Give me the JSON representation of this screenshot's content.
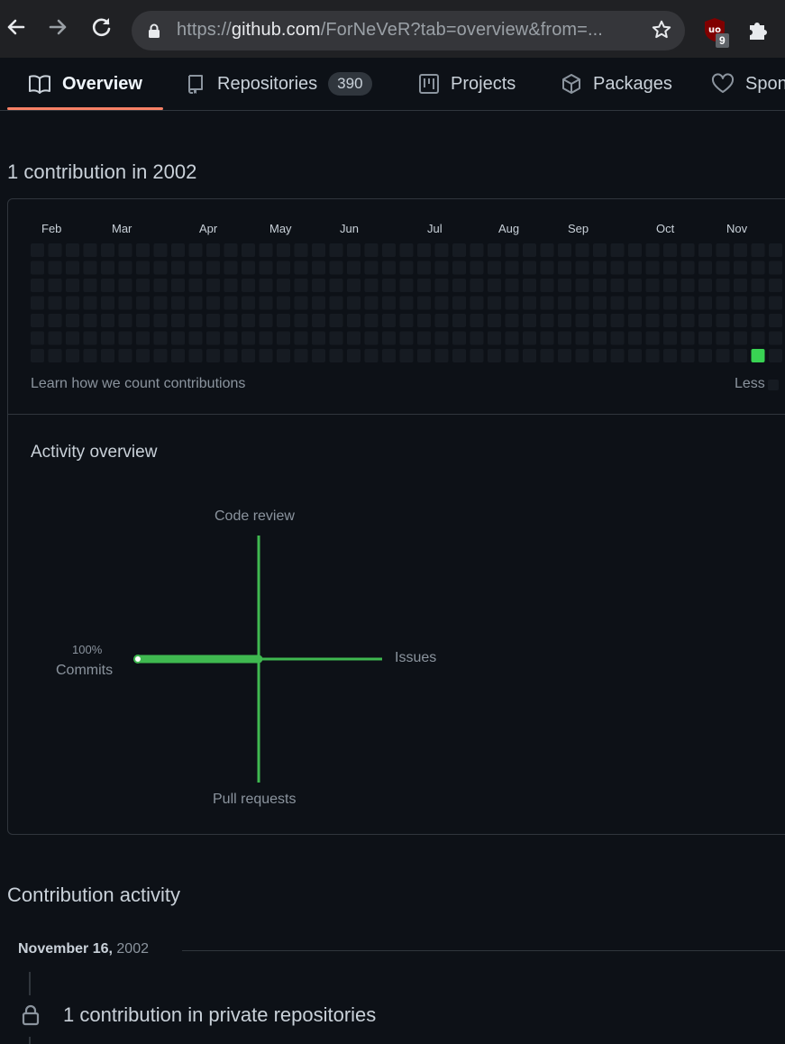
{
  "browser": {
    "url_prefix": "https://",
    "url_host": "github.com",
    "url_rest": "/ForNeVeR?tab=overview&from=...",
    "extension_badge": "9"
  },
  "tabs": [
    {
      "label": "Overview",
      "icon": "book-icon",
      "selected": true
    },
    {
      "label": "Repositories",
      "icon": "repo-icon",
      "count": "390"
    },
    {
      "label": "Projects",
      "icon": "project-icon"
    },
    {
      "label": "Packages",
      "icon": "package-icon"
    },
    {
      "label": "Spon",
      "icon": "heart-icon"
    }
  ],
  "contributions": {
    "heading": "1 contribution in 2002",
    "months": [
      "Feb",
      "Mar",
      "Apr",
      "May",
      "Jun",
      "Jul",
      "Aug",
      "Sep",
      "Oct",
      "Nov"
    ],
    "learn_link": "Learn how we count contributions",
    "legend_less": "Less",
    "active_day": {
      "week": 41,
      "weekday": 6,
      "count": 1
    },
    "colors": {
      "empty": "#161b22",
      "level4": "#39d353"
    }
  },
  "activity_overview": {
    "title": "Activity overview",
    "code_review": "Code review",
    "issues": "Issues",
    "pull_requests": "Pull requests",
    "commits": "Commits",
    "commits_percent": "100%",
    "accent": "#3fb950"
  },
  "contribution_activity": {
    "title": "Contribution activity",
    "date_bold": "November 16,",
    "date_year": "2002",
    "private_text": "1 contribution in private repositories"
  }
}
